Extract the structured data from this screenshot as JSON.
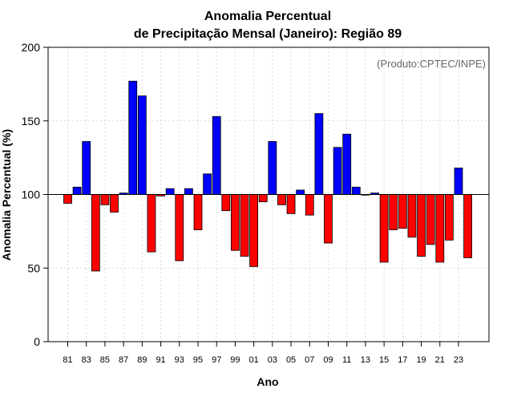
{
  "chart_data": {
    "type": "bar",
    "title": [
      "Anomalia Percentual",
      "de Precipitação Mensal (Janeiro): Região 89"
    ],
    "xlabel": "Ano",
    "ylabel": "Anomalia Percentual (%)",
    "credit": "(Produto:CPTEC/INPE)",
    "ylim": [
      0,
      200
    ],
    "yticks": [
      0,
      50,
      100,
      150,
      200
    ],
    "baseline": 100,
    "grid": true,
    "colors": {
      "above": "#0000ff",
      "below": "#ff0000",
      "outline": "#000000",
      "grid": "#d9d9d9"
    },
    "categories": [
      "81",
      "82",
      "83",
      "84",
      "85",
      "86",
      "87",
      "88",
      "89",
      "90",
      "91",
      "92",
      "93",
      "94",
      "95",
      "96",
      "97",
      "98",
      "99",
      "00",
      "01",
      "02",
      "03",
      "04",
      "05",
      "06",
      "07",
      "08",
      "09",
      "10",
      "11",
      "12",
      "13",
      "14",
      "15",
      "16",
      "17",
      "18",
      "19",
      "20",
      "21",
      "22",
      "23",
      "24"
    ],
    "xtick_labels": [
      "81",
      "83",
      "85",
      "87",
      "89",
      "91",
      "93",
      "95",
      "97",
      "99",
      "01",
      "03",
      "05",
      "07",
      "09",
      "11",
      "13",
      "15",
      "17",
      "19",
      "21",
      "23"
    ],
    "values": [
      94,
      105,
      136,
      48,
      93,
      88,
      101,
      177,
      167,
      61,
      99,
      104,
      55,
      104,
      76,
      114,
      153,
      89,
      62,
      58,
      51,
      95,
      136,
      93,
      87,
      103,
      86,
      155,
      67,
      132,
      141,
      105,
      100,
      101,
      54,
      76,
      77,
      71,
      58,
      66,
      54,
      69,
      118,
      57
    ]
  }
}
